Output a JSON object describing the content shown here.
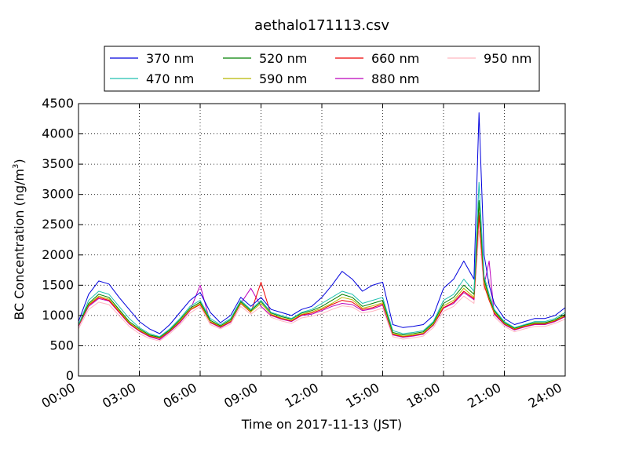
{
  "chart_data": {
    "type": "line",
    "title": "aethalo171113.csv",
    "xlabel": "Time on 2017-11-13 (JST)",
    "ylabel": "BC Concentration (ng/m³)",
    "ylabel_main": "BC Concentration (ng/m",
    "ylabel_sup": "3",
    "ylabel_end": ")",
    "xlim": [
      0,
      24
    ],
    "ylim": [
      0,
      4500
    ],
    "grid": true,
    "legend_position": "top, above plot",
    "xticks": [
      0,
      3,
      6,
      9,
      12,
      15,
      18,
      21,
      24
    ],
    "xtick_labels": [
      "00:00",
      "03:00",
      "06:00",
      "09:00",
      "12:00",
      "15:00",
      "18:00",
      "21:00",
      "24:00"
    ],
    "yticks": [
      0,
      500,
      1000,
      1500,
      2000,
      2500,
      3000,
      3500,
      4000,
      4500
    ],
    "ytick_labels": [
      "0",
      "500",
      "1000",
      "1500",
      "2000",
      "2500",
      "3000",
      "3500",
      "4000",
      "4500"
    ],
    "x": [
      0,
      0.5,
      1,
      1.5,
      2,
      2.5,
      3,
      3.5,
      4,
      4.5,
      5,
      5.5,
      6,
      6.5,
      7,
      7.5,
      8,
      8.5,
      9,
      9.5,
      10,
      10.5,
      11,
      11.5,
      12,
      12.5,
      13,
      13.5,
      14,
      14.5,
      15,
      15.5,
      16,
      16.5,
      17,
      17.5,
      18,
      18.5,
      19,
      19.5,
      19.75,
      20,
      20.25,
      20.5,
      21,
      21.5,
      22,
      22.5,
      23,
      23.5,
      24
    ],
    "series": [
      {
        "name": "370 nm",
        "color": "#0000dd",
        "values": [
          900,
          1350,
          1570,
          1520,
          1300,
          1100,
          900,
          780,
          700,
          850,
          1050,
          1250,
          1380,
          1050,
          880,
          1000,
          1300,
          1150,
          1300,
          1100,
          1050,
          1000,
          1100,
          1150,
          1300,
          1500,
          1730,
          1600,
          1400,
          1500,
          1550,
          850,
          800,
          820,
          850,
          1000,
          1450,
          1600,
          1900,
          1600,
          4350,
          2000,
          1500,
          1200,
          950,
          850,
          900,
          950,
          950,
          1000,
          1130
        ]
      },
      {
        "name": "470 nm",
        "color": "#20c0b0",
        "values": [
          850,
          1250,
          1400,
          1350,
          1150,
          950,
          800,
          700,
          650,
          780,
          950,
          1150,
          1250,
          950,
          850,
          950,
          1250,
          1100,
          1250,
          1050,
          1000,
          950,
          1050,
          1100,
          1200,
          1300,
          1400,
          1350,
          1200,
          1250,
          1300,
          750,
          700,
          720,
          750,
          900,
          1250,
          1350,
          1600,
          1400,
          3200,
          1650,
          1350,
          1100,
          900,
          800,
          850,
          900,
          900,
          950,
          1050
        ]
      },
      {
        "name": "520 nm",
        "color": "#008000",
        "values": [
          850,
          1200,
          1350,
          1300,
          1100,
          900,
          780,
          680,
          640,
          760,
          930,
          1120,
          1220,
          920,
          830,
          930,
          1230,
          1080,
          1230,
          1040,
          980,
          940,
          1040,
          1080,
          1150,
          1250,
          1350,
          1300,
          1150,
          1200,
          1250,
          720,
          680,
          700,
          730,
          880,
          1200,
          1300,
          1500,
          1350,
          2900,
          1600,
          1300,
          1080,
          880,
          790,
          840,
          880,
          880,
          930,
          1020
        ]
      },
      {
        "name": "590 nm",
        "color": "#b8b800",
        "values": [
          840,
          1180,
          1320,
          1270,
          1080,
          880,
          760,
          670,
          630,
          750,
          910,
          1100,
          1200,
          900,
          820,
          910,
          1210,
          1060,
          1200,
          1020,
          960,
          920,
          1020,
          1060,
          1120,
          1200,
          1300,
          1260,
          1120,
          1160,
          1210,
          700,
          660,
          680,
          710,
          860,
          1160,
          1250,
          1450,
          1300,
          2850,
          1550,
          1280,
          1060,
          870,
          780,
          830,
          870,
          870,
          920,
          1000
        ]
      },
      {
        "name": "660 nm",
        "color": "#ee0000",
        "values": [
          830,
          1170,
          1300,
          1250,
          1060,
          870,
          750,
          660,
          620,
          740,
          900,
          1090,
          1180,
          890,
          810,
          900,
          1200,
          1050,
          1550,
          1010,
          950,
          910,
          1010,
          1040,
          1100,
          1180,
          1250,
          1220,
          1100,
          1130,
          1190,
          690,
          650,
          670,
          700,
          850,
          1130,
          1220,
          1400,
          1280,
          2650,
          1500,
          1250,
          1040,
          860,
          770,
          820,
          860,
          860,
          910,
          990
        ]
      },
      {
        "name": "880 nm",
        "color": "#bb00bb",
        "values": [
          820,
          1150,
          1280,
          1240,
          1050,
          860,
          740,
          650,
          600,
          730,
          880,
          1080,
          1500,
          880,
          800,
          890,
          1200,
          1450,
          1150,
          1000,
          940,
          900,
          1000,
          1020,
          1080,
          1150,
          1200,
          1180,
          1080,
          1110,
          1170,
          680,
          640,
          660,
          690,
          840,
          1120,
          1200,
          1380,
          1260,
          2700,
          1500,
          1900,
          1020,
          850,
          760,
          810,
          850,
          850,
          900,
          980
        ]
      },
      {
        "name": "950 nm",
        "color": "#ffb6c1",
        "values": [
          780,
          1100,
          1220,
          1180,
          1000,
          820,
          700,
          620,
          580,
          700,
          850,
          1040,
          1150,
          850,
          780,
          860,
          1150,
          1020,
          1150,
          970,
          910,
          870,
          960,
          990,
          1030,
          1100,
          1160,
          1140,
          1040,
          1070,
          1120,
          650,
          610,
          630,
          660,
          800,
          1070,
          1150,
          1320,
          1200,
          2400,
          1420,
          1600,
          980,
          820,
          730,
          780,
          820,
          820,
          870,
          940
        ]
      }
    ]
  }
}
